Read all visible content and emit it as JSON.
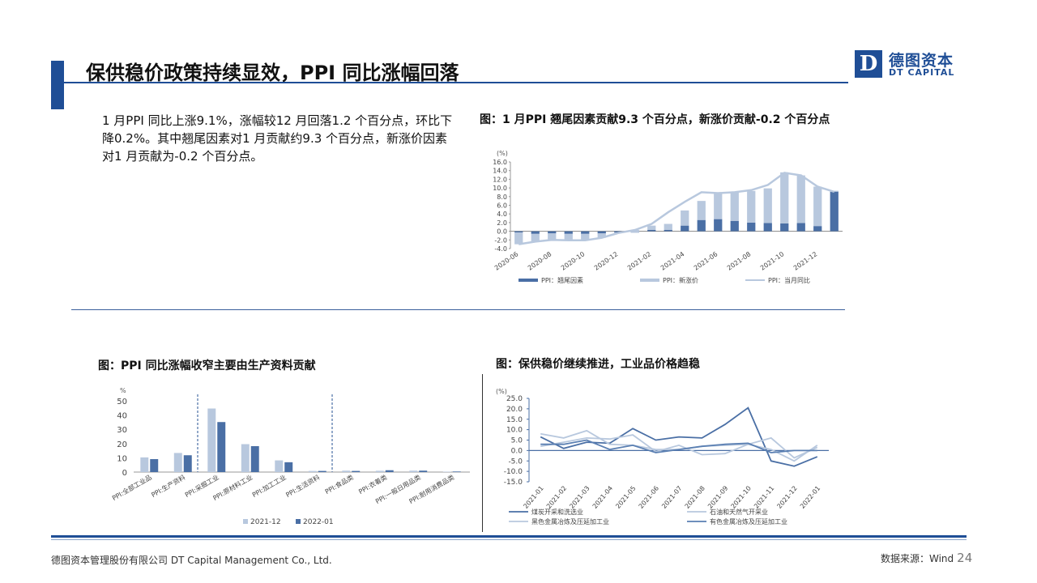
{
  "page": {
    "title": "保供稳价政策持续显效，PPI 同比涨幅回落",
    "logo": {
      "mark": "D",
      "cn": "德图资本",
      "en": "DT CAPITAL"
    },
    "intro": "1 月PPI 同比上涨9.1%，涨幅较12 月回落1.2 个百分点，环比下降0.2%。其中翘尾因素对1 月贡献约9.3 个百分点，新涨价因素对1 月贡献为-0.2 个百分点。",
    "footer_left": "德图资本管理股份有限公司  DT Capital Management  Co., Ltd.",
    "footer_source": "数据来源：Wind",
    "page_number": "24"
  },
  "chart_data": [
    {
      "id": "contrib",
      "type": "bar",
      "title": "图：1 月PPI 翘尾因素贡献9.3 个百分点，新涨价贡献-0.2 个百分点",
      "unit": "(%)",
      "ylim": [
        -4.0,
        16.0
      ],
      "yticks": [
        "16.0",
        "14.0",
        "12.0",
        "10.0",
        "8.0",
        "6.0",
        "4.0",
        "2.0",
        "0.0",
        "-2.0",
        "-4.0"
      ],
      "categories": [
        "2020-06",
        "2020-07",
        "2020-08",
        "2020-09",
        "2020-10",
        "2020-11",
        "2020-12",
        "2021-01",
        "2021-02",
        "2021-03",
        "2021-04",
        "2021-05",
        "2021-06",
        "2021-07",
        "2021-08",
        "2021-09",
        "2021-10",
        "2021-11",
        "2021-12",
        "2022-01"
      ],
      "tick_labels": [
        "2020-06",
        "2020-08",
        "2020-10",
        "2020-12",
        "2021-02",
        "2021-04",
        "2021-06",
        "2021-08",
        "2021-10",
        "2021-12"
      ],
      "series": [
        {
          "name": "PPI：翘尾因素",
          "color": "#4a6fa5",
          "values": [
            -0.3,
            -0.6,
            -0.5,
            -0.6,
            -0.6,
            -0.5,
            -0.3,
            -0.3,
            0.3,
            0.3,
            1.3,
            2.6,
            2.8,
            2.4,
            2.0,
            1.9,
            1.8,
            1.9,
            1.2,
            9.3
          ]
        },
        {
          "name": "PPI：新涨价",
          "color": "#b8c8de",
          "values": [
            -2.7,
            -1.8,
            -1.5,
            -1.5,
            -1.5,
            -1.0,
            -0.1,
            0.6,
            1.0,
            1.4,
            3.5,
            4.4,
            6.0,
            6.6,
            7.3,
            8.0,
            11.8,
            11.0,
            9.1,
            -0.2
          ]
        },
        {
          "name": "PPI：当月同比",
          "color": "#b8c8de",
          "values": [
            -3.0,
            -2.4,
            -2.0,
            -2.1,
            -2.1,
            -1.5,
            -0.4,
            0.3,
            1.7,
            4.4,
            6.8,
            9.0,
            8.8,
            9.0,
            9.5,
            10.7,
            13.5,
            12.9,
            10.3,
            9.1
          ]
        }
      ]
    },
    {
      "id": "sectors",
      "type": "bar",
      "title": "图：PPI 同比涨幅收窄主要由生产资料贡献",
      "unit": "%",
      "ylim": [
        0,
        50
      ],
      "yticks": [
        "50",
        "40",
        "30",
        "20",
        "10",
        "0"
      ],
      "categories": [
        "PPI:全部工业品",
        "PPI:生产资料",
        "PPI:采掘工业",
        "PPI:原材料工业",
        "PPI:加工工业",
        "PPI:生活资料",
        "PPI:食品类",
        "PPI:衣着类",
        "PPI:一般日用品类",
        "PPI:耐用消费品类"
      ],
      "series": [
        {
          "name": "2021-12",
          "color": "#b8c8de",
          "values": [
            10.3,
            13.4,
            44.6,
            19.6,
            8.2,
            0.8,
            1.0,
            0.9,
            1.0,
            0.3
          ]
        },
        {
          "name": "2022-01",
          "color": "#4a6fa5",
          "values": [
            9.1,
            11.8,
            35.1,
            18.2,
            6.9,
            0.8,
            0.8,
            1.3,
            1.0,
            0.4
          ]
        }
      ]
    },
    {
      "id": "industries",
      "type": "line",
      "title": "图：保供稳价继续推进，工业品价格趋稳",
      "unit": "(%)",
      "ylim": [
        -15.0,
        25.0
      ],
      "yticks": [
        "25.0",
        "20.0",
        "15.0",
        "10.0",
        "5.0",
        "0.0",
        "-5.0",
        "-10.0",
        "-15.0"
      ],
      "x": [
        "2021-01",
        "2021-02",
        "2021-03",
        "2021-04",
        "2021-05",
        "2021-06",
        "2021-07",
        "2021-08",
        "2021-09",
        "2021-10",
        "2021-11",
        "2021-12",
        "2022-01"
      ],
      "series": [
        {
          "name": "煤炭开采和洗选业",
          "color": "#4a6fa5",
          "values": [
            6.5,
            1.0,
            4.0,
            3.5,
            10.5,
            5.0,
            6.5,
            6.0,
            12.5,
            20.5,
            -5.0,
            -7.5,
            -3.0
          ]
        },
        {
          "name": "石油和天然气开采业",
          "color": "#b8c8de",
          "values": [
            8.0,
            6.0,
            9.5,
            3.0,
            2.5,
            0.5,
            0.5,
            2.0,
            2.5,
            3.0,
            6.0,
            -3.5,
            1.5
          ]
        },
        {
          "name": "黑色金属冶炼及压延加工业",
          "color": "#b8c8de",
          "values": [
            2.0,
            4.0,
            6.0,
            5.5,
            7.5,
            -0.5,
            2.5,
            -2.0,
            -1.5,
            3.0,
            0.5,
            -5.0,
            2.5
          ]
        },
        {
          "name": "有色金属冶炼及压延加工业",
          "color": "#5a7fb2",
          "values": [
            3.0,
            3.0,
            5.0,
            0.5,
            2.5,
            -1.0,
            0.5,
            2.0,
            3.0,
            3.5,
            -1.0,
            0.0,
            0.0
          ]
        }
      ]
    }
  ]
}
